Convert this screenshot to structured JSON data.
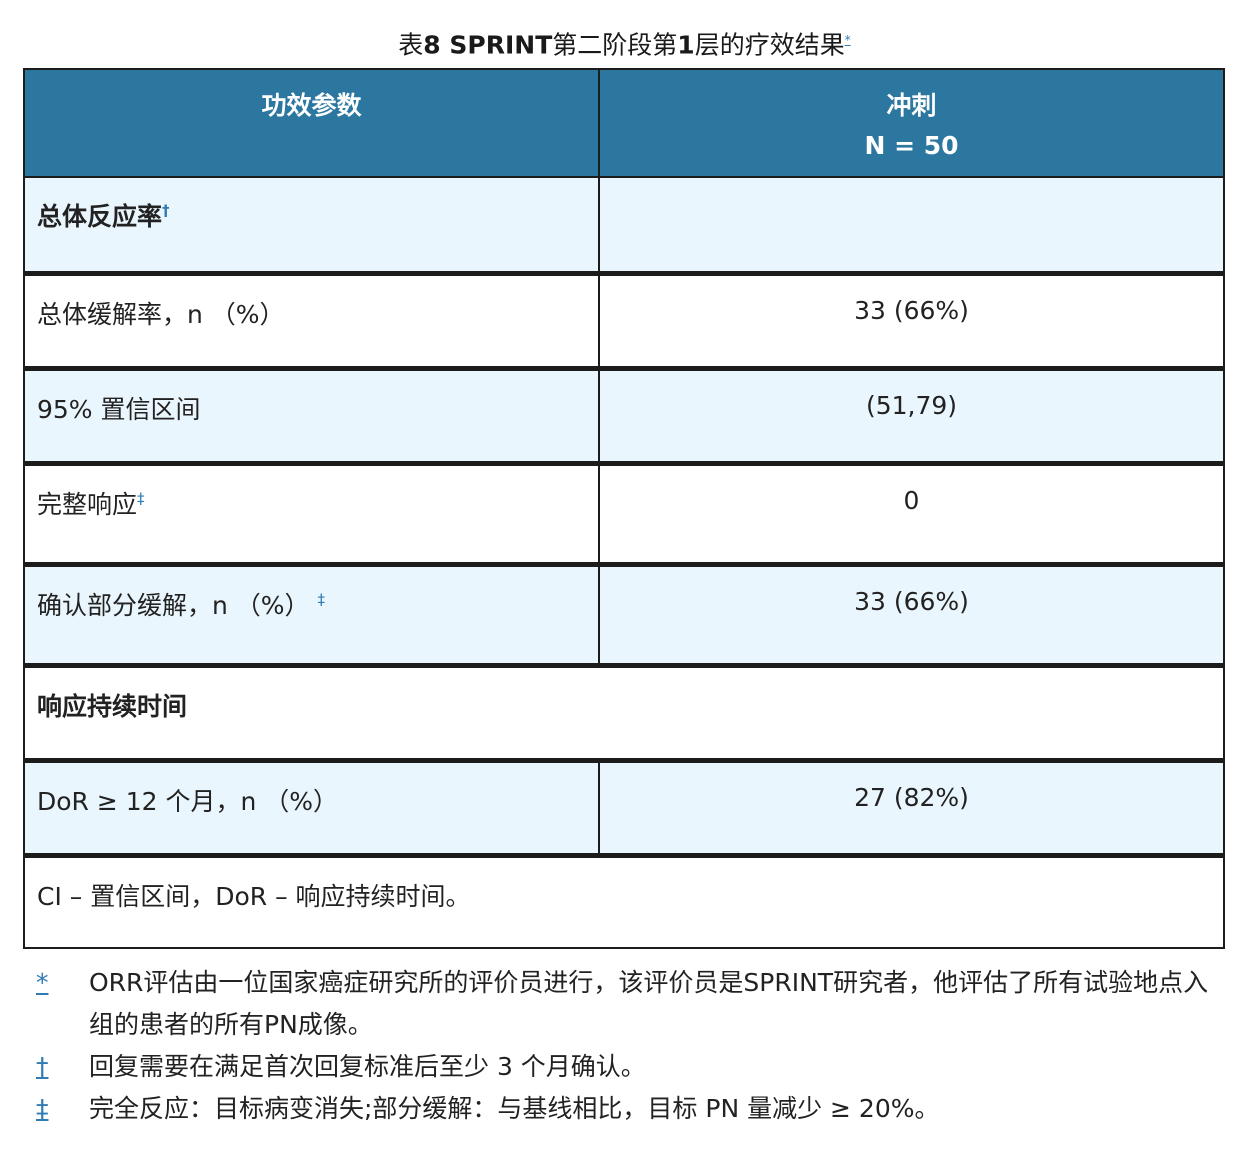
{
  "caption": {
    "prefix": "表",
    "number": "8",
    "trial": " SPRINT",
    "middle": "第二阶段第",
    "layer": "1",
    "suffix": "层的疗效结果",
    "ref": "*"
  },
  "header": {
    "param": "功效参数",
    "arm": "冲刺",
    "n": "N = 50"
  },
  "rows": [
    {
      "label": "总体反应率",
      "sup": "†",
      "value": ""
    },
    {
      "label": "总体缓解率，n （%）",
      "sup": "",
      "value": "33 (66%)"
    },
    {
      "label": "95% 置信区间",
      "sup": "",
      "value": "(51,79)"
    },
    {
      "label": "完整响应",
      "sup": "‡",
      "value": "0"
    },
    {
      "label": "确认部分缓解，n （%）",
      "sup": "‡",
      "value": "33 (66%)"
    },
    {
      "label": "响应持续时间",
      "sup": "",
      "value": ""
    },
    {
      "label": "DoR ≥ 12 个月，n （%）",
      "sup": "",
      "value": "27 (82%)"
    }
  ],
  "abbrev": "CI – 置信区间，DoR – 响应持续时间。",
  "footnotes": [
    {
      "mark": "*",
      "text": "ORR评估由一位国家癌症研究所的评价员进行，该评价员是SPRINT研究者，他评估了所有试验地点入组的患者的所有PN成像。"
    },
    {
      "mark": "†",
      "text": "回复需要在满足首次回复标准后至少 3 个月确认。"
    },
    {
      "mark": "‡",
      "text": "完全反应：目标病变消失;部分缓解：与基线相比，目标 PN 量减少 ≥ 20%。"
    }
  ]
}
